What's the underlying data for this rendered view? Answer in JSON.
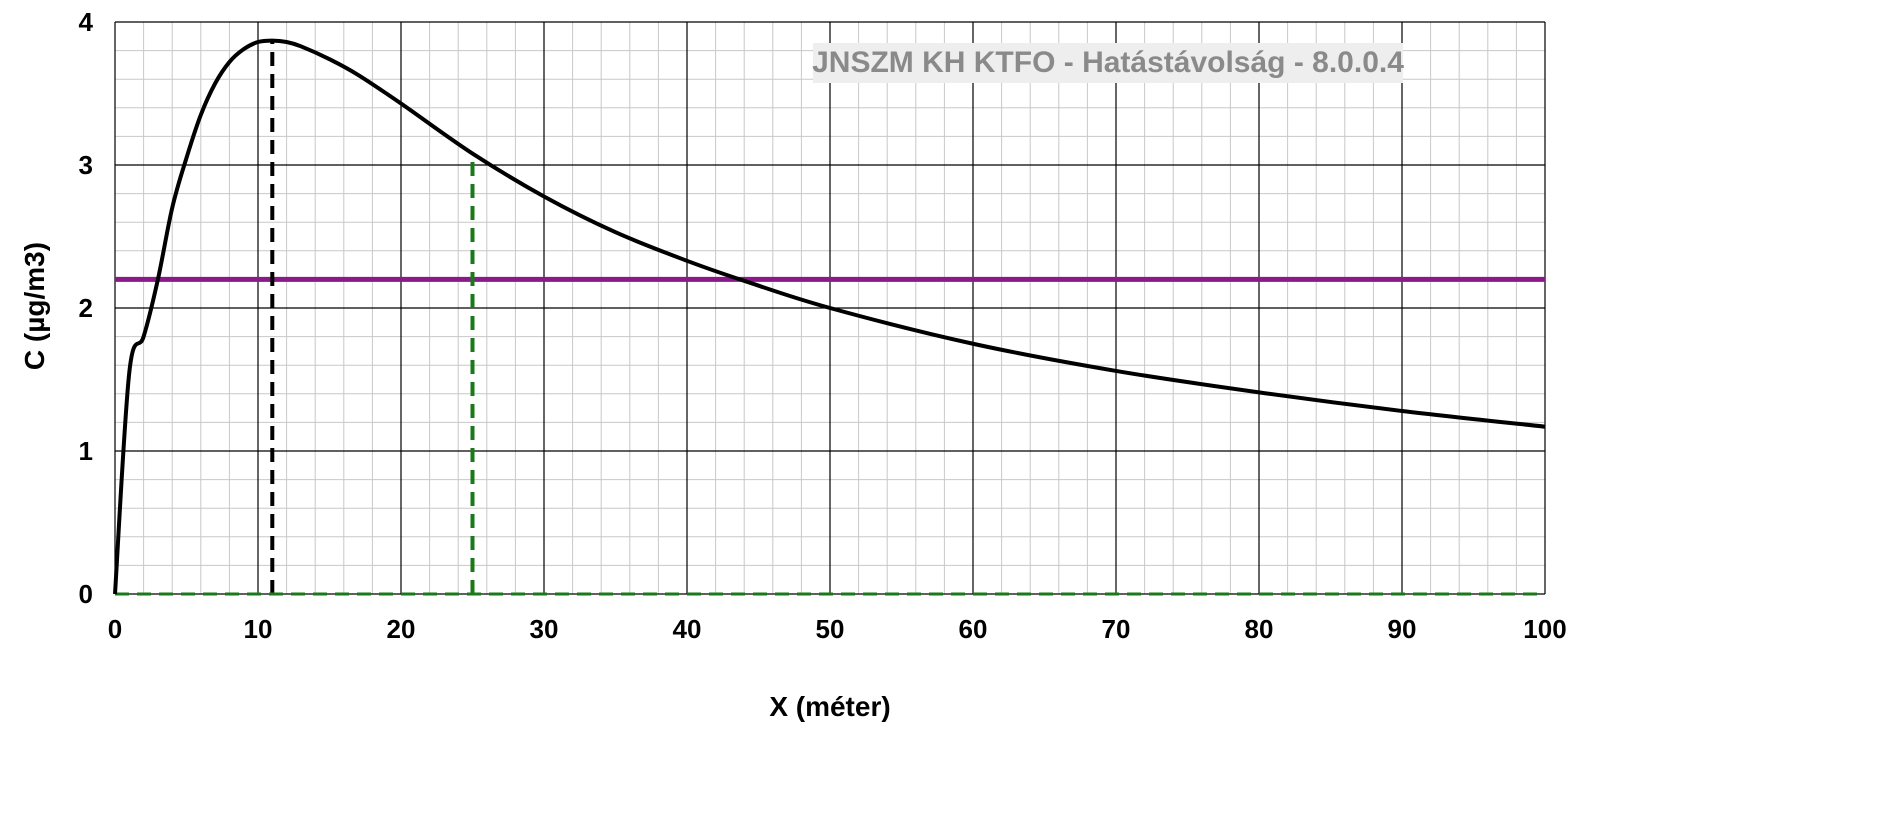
{
  "chart_data": {
    "type": "line",
    "title": "",
    "watermark": "JNSZM KH KTFO - Hatástávolság  - 8.0.0.4",
    "xlabel": "X (méter)",
    "ylabel": "C (µg/m3)",
    "xlim": [
      0,
      100
    ],
    "ylim": [
      0,
      4
    ],
    "x_ticks": [
      0,
      10,
      20,
      30,
      40,
      50,
      60,
      70,
      80,
      90,
      100
    ],
    "y_ticks": [
      0,
      1,
      2,
      3,
      4
    ],
    "x_tick_labels": [
      "0",
      "10",
      "20",
      "30",
      "40",
      "50",
      "60",
      "70",
      "80",
      "90",
      "100"
    ],
    "y_tick_labels": [
      "0",
      "1",
      "2",
      "3",
      "4"
    ],
    "grid": true,
    "minor_grid": true,
    "series": [
      {
        "color": "#000000",
        "x": [
          0,
          1,
          2,
          3,
          4,
          5,
          6,
          7,
          8,
          9,
          10,
          11,
          12,
          13,
          15,
          17,
          20,
          25,
          30,
          35,
          40,
          44,
          50,
          60,
          70,
          80,
          90,
          100
        ],
        "y": [
          0,
          1.55,
          1.8,
          2.2,
          2.7,
          3.05,
          3.35,
          3.57,
          3.72,
          3.81,
          3.86,
          3.87,
          3.86,
          3.83,
          3.74,
          3.63,
          3.43,
          3.08,
          2.78,
          2.53,
          2.33,
          2.19,
          2.0,
          1.75,
          1.56,
          1.41,
          1.28,
          1.17
        ]
      }
    ],
    "reference_lines": [
      {
        "orientation": "horizontal",
        "value": 2.2,
        "color": "#8a1a8a",
        "style": "solid"
      },
      {
        "orientation": "vertical",
        "value": 11,
        "color": "#000000",
        "style": "dashed"
      },
      {
        "orientation": "vertical",
        "value": 25,
        "color": "#1a7a1a",
        "style": "dashed"
      },
      {
        "orientation": "horizontal",
        "value": 0,
        "color": "#1a7a1a",
        "style": "dashed"
      }
    ],
    "colors": {
      "background": "#ffffff",
      "grid_major": "#000000",
      "grid_minor": "#c8c8c8",
      "watermark_text": "#8a8a8a",
      "watermark_bg": "#eeeeee"
    }
  }
}
